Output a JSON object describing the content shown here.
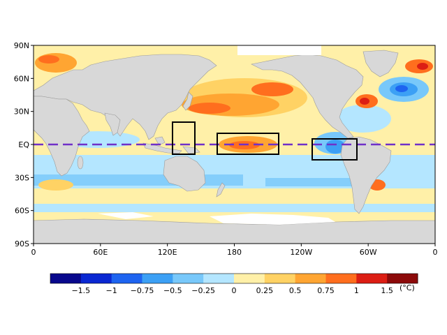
{
  "map": {
    "lat_labels": [
      "90N",
      "60N",
      "30N",
      "EQ",
      "30S",
      "60S",
      "90S"
    ],
    "lon_labels": [
      "0",
      "60E",
      "120E",
      "180",
      "120W",
      "60W",
      "0"
    ],
    "colors": {
      "ocean_default": "#FFF0A8",
      "land": "#D8D8D8",
      "ice": "#FFFFFF",
      "equator_line": "#7030C8",
      "box": "#000000"
    }
  },
  "colorbar": {
    "unit": "(°C)",
    "labels": [
      "−1.5",
      "−1",
      "−0.75",
      "−0.5",
      "−0.25",
      "0",
      "0.25",
      "0.5",
      "0.75",
      "1",
      "1.5"
    ],
    "colors": [
      "#08088C",
      "#0A28D2",
      "#1E64F0",
      "#3CA0F5",
      "#78C8FA",
      "#B4E6FF",
      "#FFF0A8",
      "#FFD264",
      "#FFA532",
      "#FF6E1E",
      "#DC1E14",
      "#8C0A0A"
    ]
  }
}
